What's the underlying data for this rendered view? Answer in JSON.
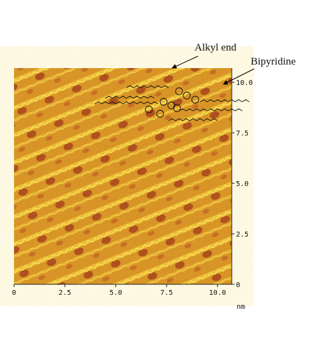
{
  "chart_data": {
    "type": "image",
    "x_label": "nm",
    "xlim": [
      0,
      10.7
    ],
    "ylim": [
      0,
      10.7
    ],
    "xticks": [
      0,
      2.5,
      {
        "value": 5,
        "label": "5.0"
      },
      7.5,
      {
        "value": 10,
        "label": "10.0"
      }
    ],
    "yticks": [
      0,
      2.5,
      {
        "value": 5,
        "label": "5.0"
      },
      7.5,
      {
        "value": 10,
        "label": "10.0"
      }
    ],
    "annotations": [
      "Alkyl end",
      "Bipyridine"
    ]
  }
}
